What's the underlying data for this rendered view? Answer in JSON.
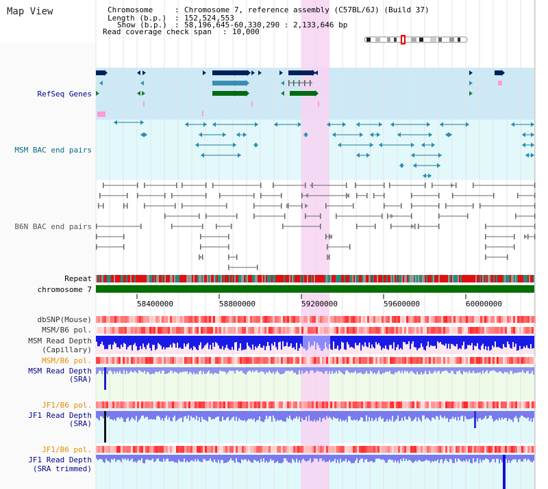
{
  "title": "Map View",
  "header": {
    "chromosome_key": "Chromosome",
    "chromosome_val": "Chromosome 7, reference assembly (C57BL/6J) (Build 37)",
    "length_key": "Length (b.p.)",
    "length_val": "152,524,553",
    "show_key": "Show (b.p.)",
    "show_val": "58,196,645-60,330,290 : 2,133,646 bp",
    "coverage_key": "Read coverage check span",
    "coverage_val": "10,000"
  },
  "tracks": {
    "refseq": "RefSeq Genes",
    "msm_bac": "MSM BAC end pairs",
    "b6n_bac": "B6N BAC end pairs",
    "repeat": "Repeat",
    "chromosome": "chromosome 7",
    "dbsnp": "dbSNP(Mouse)",
    "msm_b6_pol_1": "MSM/B6 pol.",
    "msm_depth_cap_1": "MSM Read Depth",
    "msm_depth_cap_2": "(Capillary)",
    "msm_b6_pol_2": "MSM/B6 pol.",
    "msm_depth_sra_1": "MSM Read Depth",
    "msm_depth_sra_2": "(SRA)",
    "jf1_b6_pol_1": "JF1/B6 pol.",
    "jf1_depth_sra_1": "JF1 Read Depth",
    "jf1_depth_sra_2": "(SRA)",
    "jf1_b6_pol_2": "JF1/B6 pol.",
    "jf1_depth_trim_1": "JF1 Read Depth",
    "jf1_depth_trim_2": "(SRA trimmed)"
  },
  "axis": {
    "ticks": [
      "58400000",
      "58800000",
      "59200000",
      "59600000",
      "60000000"
    ]
  },
  "colors": {
    "navy": "#00008b",
    "teal": "#006b86",
    "gray": "#555555",
    "orange": "#e68a00",
    "highlight": "#f7d4f2",
    "chrom_green": "#007000"
  }
}
